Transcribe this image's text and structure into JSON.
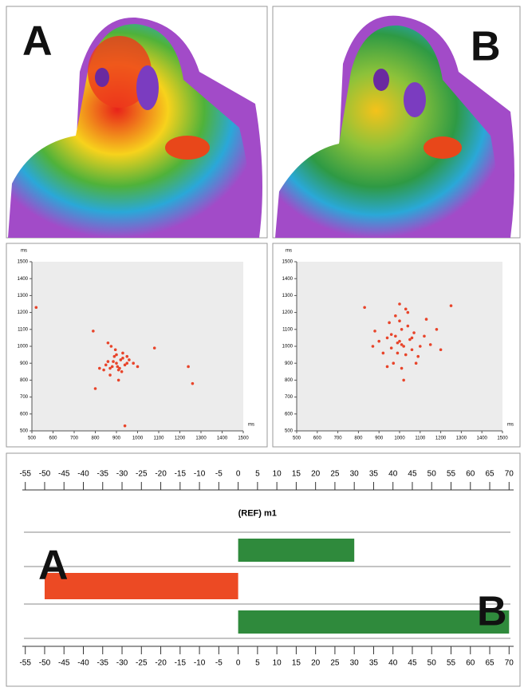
{
  "images": [
    {
      "label": "A"
    },
    {
      "label": "B"
    }
  ],
  "chart_data": [
    {
      "type": "scatter",
      "panel": "A",
      "xlabel": "ms",
      "ylabel": "ms",
      "color": "#e8442a",
      "x": [
        900,
        880,
        920,
        860,
        940,
        910,
        890,
        870,
        930,
        950,
        850,
        900,
        915,
        885,
        905,
        960,
        840,
        895,
        925,
        875,
        980,
        820,
        1000,
        870,
        930,
        520,
        1240,
        1260,
        790,
        800,
        940,
        1080,
        860,
        910,
        950
      ],
      "values": [
        900,
        880,
        920,
        910,
        890,
        860,
        940,
        870,
        930,
        900,
        890,
        950,
        870,
        910,
        880,
        920,
        860,
        980,
        850,
        1000,
        900,
        870,
        880,
        830,
        960,
        1230,
        880,
        780,
        1090,
        750,
        530,
        990,
        1020,
        800,
        940
      ],
      "xlim": [
        500,
        1500
      ],
      "ylim": [
        500,
        1500
      ],
      "xticks": [
        500,
        600,
        700,
        800,
        900,
        1000,
        1100,
        1200,
        1300,
        1400,
        1500
      ],
      "yticks": [
        500,
        600,
        700,
        800,
        900,
        1000,
        1100,
        1200,
        1300,
        1400,
        1500
      ]
    },
    {
      "type": "scatter",
      "panel": "B",
      "xlabel": "ms",
      "ylabel": "ms",
      "color": "#e8442a",
      "x": [
        1000,
        1020,
        980,
        1050,
        960,
        1010,
        1030,
        990,
        1070,
        940,
        1100,
        920,
        1000,
        1040,
        970,
        1060,
        1120,
        900,
        1010,
        980,
        1150,
        880,
        1030,
        1200,
        950,
        1080,
        1000,
        1250,
        830,
        1020,
        1090,
        960,
        1180,
        1040,
        990,
        1130,
        870,
        1010,
        1060,
        940
      ],
      "values": [
        1030,
        1000,
        1060,
        1040,
        990,
        1100,
        950,
        1020,
        1080,
        1050,
        1000,
        960,
        1150,
        1120,
        900,
        980,
        1060,
        1030,
        870,
        1180,
        1010,
        1090,
        1220,
        980,
        1140,
        900,
        1250,
        1240,
        1230,
        800,
        940,
        1070,
        1100,
        1200,
        960,
        1160,
        1000,
        1010,
        1050,
        880
      ],
      "xlim": [
        500,
        1500
      ],
      "ylim": [
        500,
        1500
      ],
      "xticks": [
        500,
        600,
        700,
        800,
        900,
        1000,
        1100,
        1200,
        1300,
        1400,
        1500
      ],
      "yticks": [
        500,
        600,
        700,
        800,
        900,
        1000,
        1100,
        1200,
        1300,
        1400,
        1500
      ]
    },
    {
      "type": "hbar",
      "annotations": [
        "A",
        "B"
      ],
      "categories": [
        "(REF) m1",
        null,
        null,
        null
      ],
      "values": [
        null,
        30,
        -50,
        70
      ],
      "colors": [
        null,
        "#2f8a3c",
        "#ec4a24",
        "#2f8a3c"
      ],
      "xlim": [
        -57,
        72
      ],
      "xticks": [
        -55,
        -50,
        -45,
        -40,
        -35,
        -30,
        -25,
        -20,
        -15,
        -10,
        -5,
        0,
        5,
        10,
        15,
        20,
        25,
        30,
        35,
        40,
        45,
        50,
        55,
        60,
        65,
        70
      ]
    }
  ]
}
